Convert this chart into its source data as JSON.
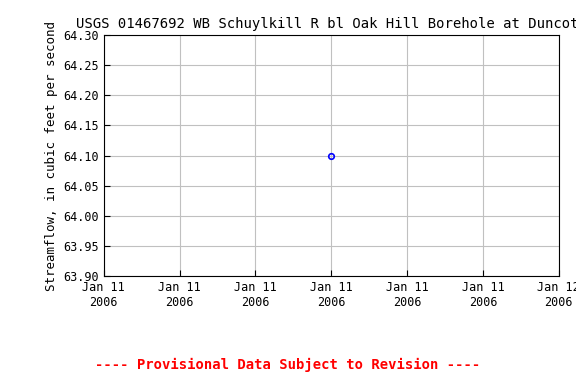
{
  "title": "USGS 01467692 WB Schuylkill R bl Oak Hill Borehole at Duncott",
  "ylabel": "Streamflow, in cubic feet per second",
  "ylim": [
    63.9,
    64.3
  ],
  "yticks": [
    63.9,
    63.95,
    64.0,
    64.05,
    64.1,
    64.15,
    64.2,
    64.25,
    64.3
  ],
  "data_point_date": "2006-01-11 12:00:00",
  "data_point_value": 64.1,
  "marker_color": "#0000ff",
  "marker_size": 4,
  "grid_color": "#c0c0c0",
  "background_color": "#ffffff",
  "provisional_text": "---- Provisional Data Subject to Revision ----",
  "provisional_color": "#ff0000",
  "title_fontsize": 10,
  "label_fontsize": 9,
  "tick_fontsize": 8.5,
  "provisional_fontsize": 10,
  "xstart": "2006-01-11 00:00:00",
  "xend": "2006-01-12 00:00:00",
  "num_xticks": 7,
  "xtick_labels": [
    "Jan 11\n2006",
    "Jan 11\n2006",
    "Jan 11\n2006",
    "Jan 11\n2006",
    "Jan 11\n2006",
    "Jan 11\n2006",
    "Jan 12\n2006"
  ]
}
